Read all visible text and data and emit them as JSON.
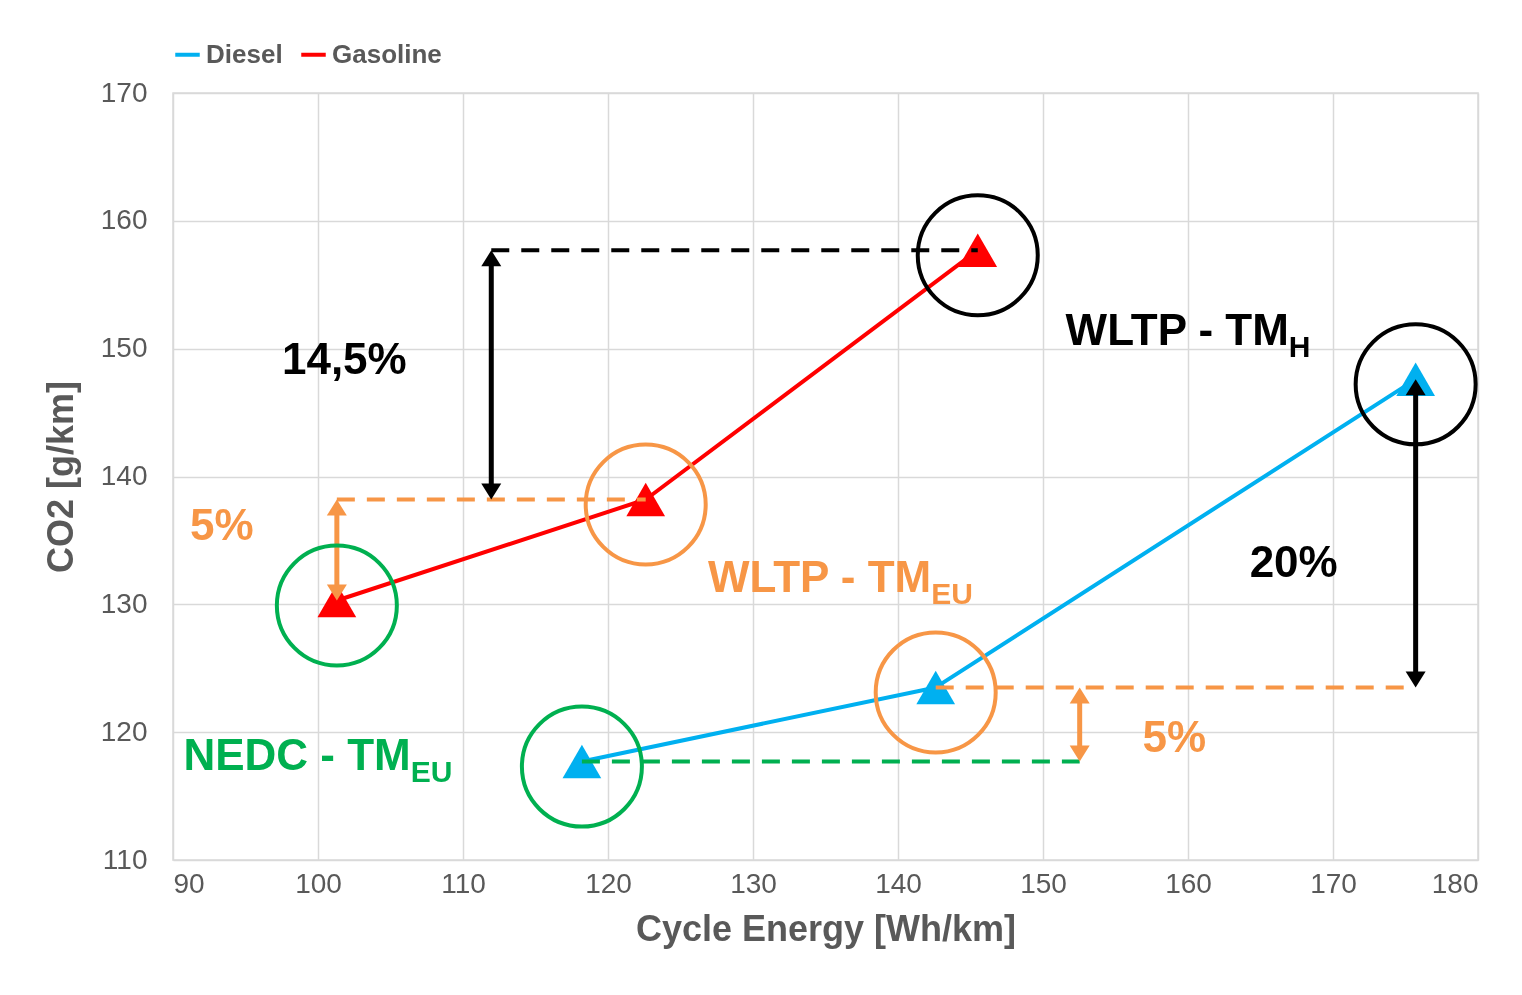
{
  "chart_data": {
    "type": "line",
    "xlabel": "Cycle Energy [Wh/km]",
    "ylabel": "CO2 [g/km]",
    "series": [
      {
        "name": "Diesel",
        "color": "#00b0f0",
        "x": [
          118.2,
          142.6,
          175.7
        ],
        "values": [
          117.7,
          123.5,
          147.6
        ]
      },
      {
        "name": "Gasoline",
        "color": "#ff0000",
        "x": [
          101.3,
          122.6,
          145.5
        ],
        "values": [
          130.3,
          138.2,
          157.7
        ]
      }
    ],
    "xlim": [
      90,
      180
    ],
    "xticks": [
      90,
      100,
      110,
      120,
      130,
      140,
      150,
      160,
      170,
      180
    ],
    "ylim": [
      110,
      170
    ],
    "yticks": [
      110,
      120,
      130,
      140,
      150,
      160,
      170
    ],
    "grid": true,
    "legend": "top",
    "marker": "triangle",
    "line_style": "solid",
    "annotations": [
      "14,5%",
      "5%",
      "WLTP - TM$_{H}$",
      "WLTP - TM$_{EU}$",
      "NEDC - TM$_{EU}$",
      "20%",
      "5%"
    ]
  }
}
